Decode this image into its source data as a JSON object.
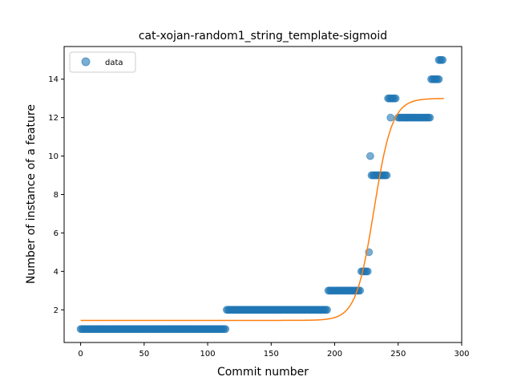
{
  "chart_data": {
    "type": "scatter",
    "title": "cat-xojan-random1_string_template-sigmoid",
    "xlabel": "Commit number",
    "ylabel": "Number of instance of a feature",
    "xlim": [
      -13,
      300
    ],
    "ylim": [
      0.3,
      15.7
    ],
    "xticks": [
      0,
      50,
      100,
      150,
      200,
      250,
      300
    ],
    "yticks": [
      2,
      4,
      6,
      8,
      10,
      12,
      14
    ],
    "legend": {
      "position": "top-left",
      "entries": [
        "data"
      ]
    },
    "colors": {
      "data": "#1f77b4",
      "fit": "#ff7f0e"
    },
    "series": [
      {
        "name": "data",
        "kind": "scatter",
        "segments": [
          {
            "x_start": 0,
            "x_end": 114,
            "y": 1
          },
          {
            "x_start": 115,
            "x_end": 194,
            "y": 2
          },
          {
            "x_start": 195,
            "x_end": 220,
            "y": 3
          },
          {
            "x_start": 221,
            "x_end": 226,
            "y": 4
          },
          {
            "x_start": 227,
            "x_end": 227,
            "y": 5
          },
          {
            "x_start": 228,
            "x_end": 228,
            "y": 10
          },
          {
            "x_start": 229,
            "x_end": 241,
            "y": 9
          },
          {
            "x_start": 242,
            "x_end": 248,
            "y": 13
          },
          {
            "x_start": 244,
            "x_end": 244,
            "y": 12
          },
          {
            "x_start": 250,
            "x_end": 275,
            "y": 12
          },
          {
            "x_start": 276,
            "x_end": 282,
            "y": 14
          },
          {
            "x_start": 282,
            "x_end": 285,
            "y": 15
          }
        ]
      },
      {
        "name": "",
        "kind": "line",
        "model": "sigmoid",
        "params": {
          "low": 1.45,
          "high": 13.0,
          "x0": 231,
          "k": 0.14
        },
        "x_range": [
          0,
          286
        ]
      }
    ]
  }
}
